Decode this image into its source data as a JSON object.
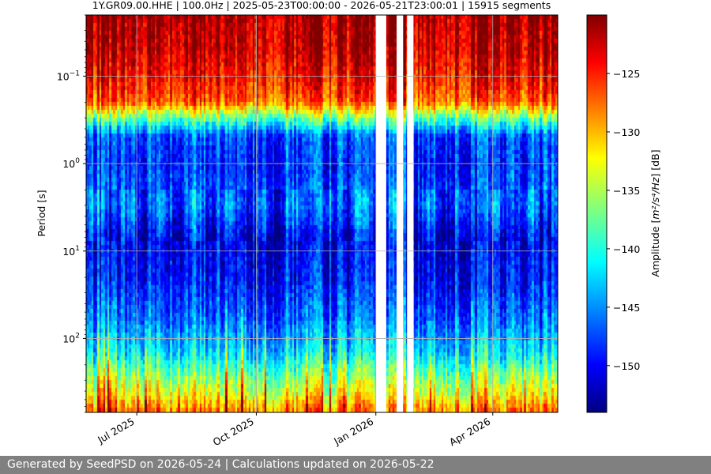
{
  "chart_data": {
    "type": "heatmap",
    "title": "1Y.GR09.00.HHE | 100.0Hz | 2025-05-23T00:00:00 - 2026-05-21T23:00:01 | 15915 segments",
    "ylabel": "Period [s]",
    "yscale": "log",
    "ylim": [
      0.02,
      700
    ],
    "y_inverted": true,
    "y_ticks": [
      {
        "value": 0.1,
        "base": "10",
        "exp": "−1"
      },
      {
        "value": 1,
        "base": "10",
        "exp": "0"
      },
      {
        "value": 10,
        "base": "10",
        "exp": "1"
      },
      {
        "value": 100,
        "base": "10",
        "exp": "2"
      }
    ],
    "xlim": [
      "2025-05-23",
      "2026-05-21"
    ],
    "x_ticks": [
      {
        "date": "2025-07-01",
        "label": "Jul 2025"
      },
      {
        "date": "2025-10-01",
        "label": "Oct 2025"
      },
      {
        "date": "2026-01-01",
        "label": "Jan 2026"
      },
      {
        "date": "2026-04-01",
        "label": "Apr 2026"
      }
    ],
    "data_gaps": [
      [
        "2026-01-01",
        "2026-01-09"
      ],
      [
        "2026-01-17",
        "2026-01-22"
      ],
      [
        "2026-01-25",
        "2026-01-30"
      ]
    ],
    "grid": true,
    "colorscale": "jet",
    "colorbar": {
      "label_prefix": "Amplitude [",
      "label_math": "m²/s⁴/Hz",
      "label_suffix": "] [dB]",
      "range": [
        -154,
        -120
      ],
      "ticks": [
        -125,
        -130,
        -135,
        -140,
        -145,
        -150
      ],
      "tick_labels": [
        "−125",
        "−130",
        "−135",
        "−140",
        "−145",
        "−150"
      ]
    },
    "amplitude_profile": [
      {
        "period": 0.02,
        "db": -121
      },
      {
        "period": 0.05,
        "db": -122
      },
      {
        "period": 0.1,
        "db": -124
      },
      {
        "period": 0.2,
        "db": -127
      },
      {
        "period": 0.3,
        "db": -137
      },
      {
        "period": 0.5,
        "db": -147
      },
      {
        "period": 1,
        "db": -148
      },
      {
        "period": 3,
        "db": -146
      },
      {
        "period": 7,
        "db": -150
      },
      {
        "period": 20,
        "db": -149
      },
      {
        "period": 60,
        "db": -146
      },
      {
        "period": 150,
        "db": -142
      },
      {
        "period": 300,
        "db": -136
      },
      {
        "period": 450,
        "db": -133
      },
      {
        "period": 700,
        "db": -128
      }
    ]
  },
  "footer": {
    "text": "Generated by SeedPSD on 2026-05-24 | Calculations updated on 2026-05-22"
  }
}
